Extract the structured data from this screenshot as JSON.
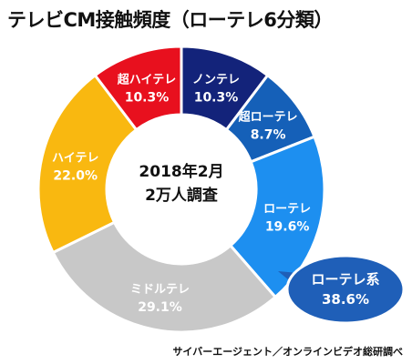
{
  "chart_data": {
    "type": "pie",
    "title": "テレビCM接触頻度（ローテレ6分類）",
    "center_text": [
      "2018年2月",
      "2万人調査"
    ],
    "source": "サイバーエージェント／オンラインビデオ総研調べ",
    "slices": [
      {
        "label": "ノンテレ",
        "value": 10.3,
        "value_label": "10.3%",
        "color": "#13237a",
        "text_color": "#ffffff"
      },
      {
        "label": "超ローテレ",
        "value": 8.7,
        "value_label": "8.7%",
        "color": "#1560b8",
        "text_color": "#ffffff"
      },
      {
        "label": "ローテレ",
        "value": 19.6,
        "value_label": "19.6%",
        "color": "#1d8ff0",
        "text_color": "#ffffff"
      },
      {
        "label": "ミドルテレ",
        "value": 29.1,
        "value_label": "29.1%",
        "color": "#c8c8c8",
        "text_color": "#ffffff"
      },
      {
        "label": "ハイテレ",
        "value": 22.0,
        "value_label": "22.0%",
        "color": "#f9b810",
        "text_color": "#ffffff"
      },
      {
        "label": "超ハイテレ",
        "value": 10.3,
        "value_label": "10.3%",
        "color": "#e8101e",
        "text_color": "#ffffff"
      }
    ],
    "callout": {
      "label": "ローテレ系",
      "value_label": "38.6%",
      "color": "#1f5fb8"
    }
  }
}
